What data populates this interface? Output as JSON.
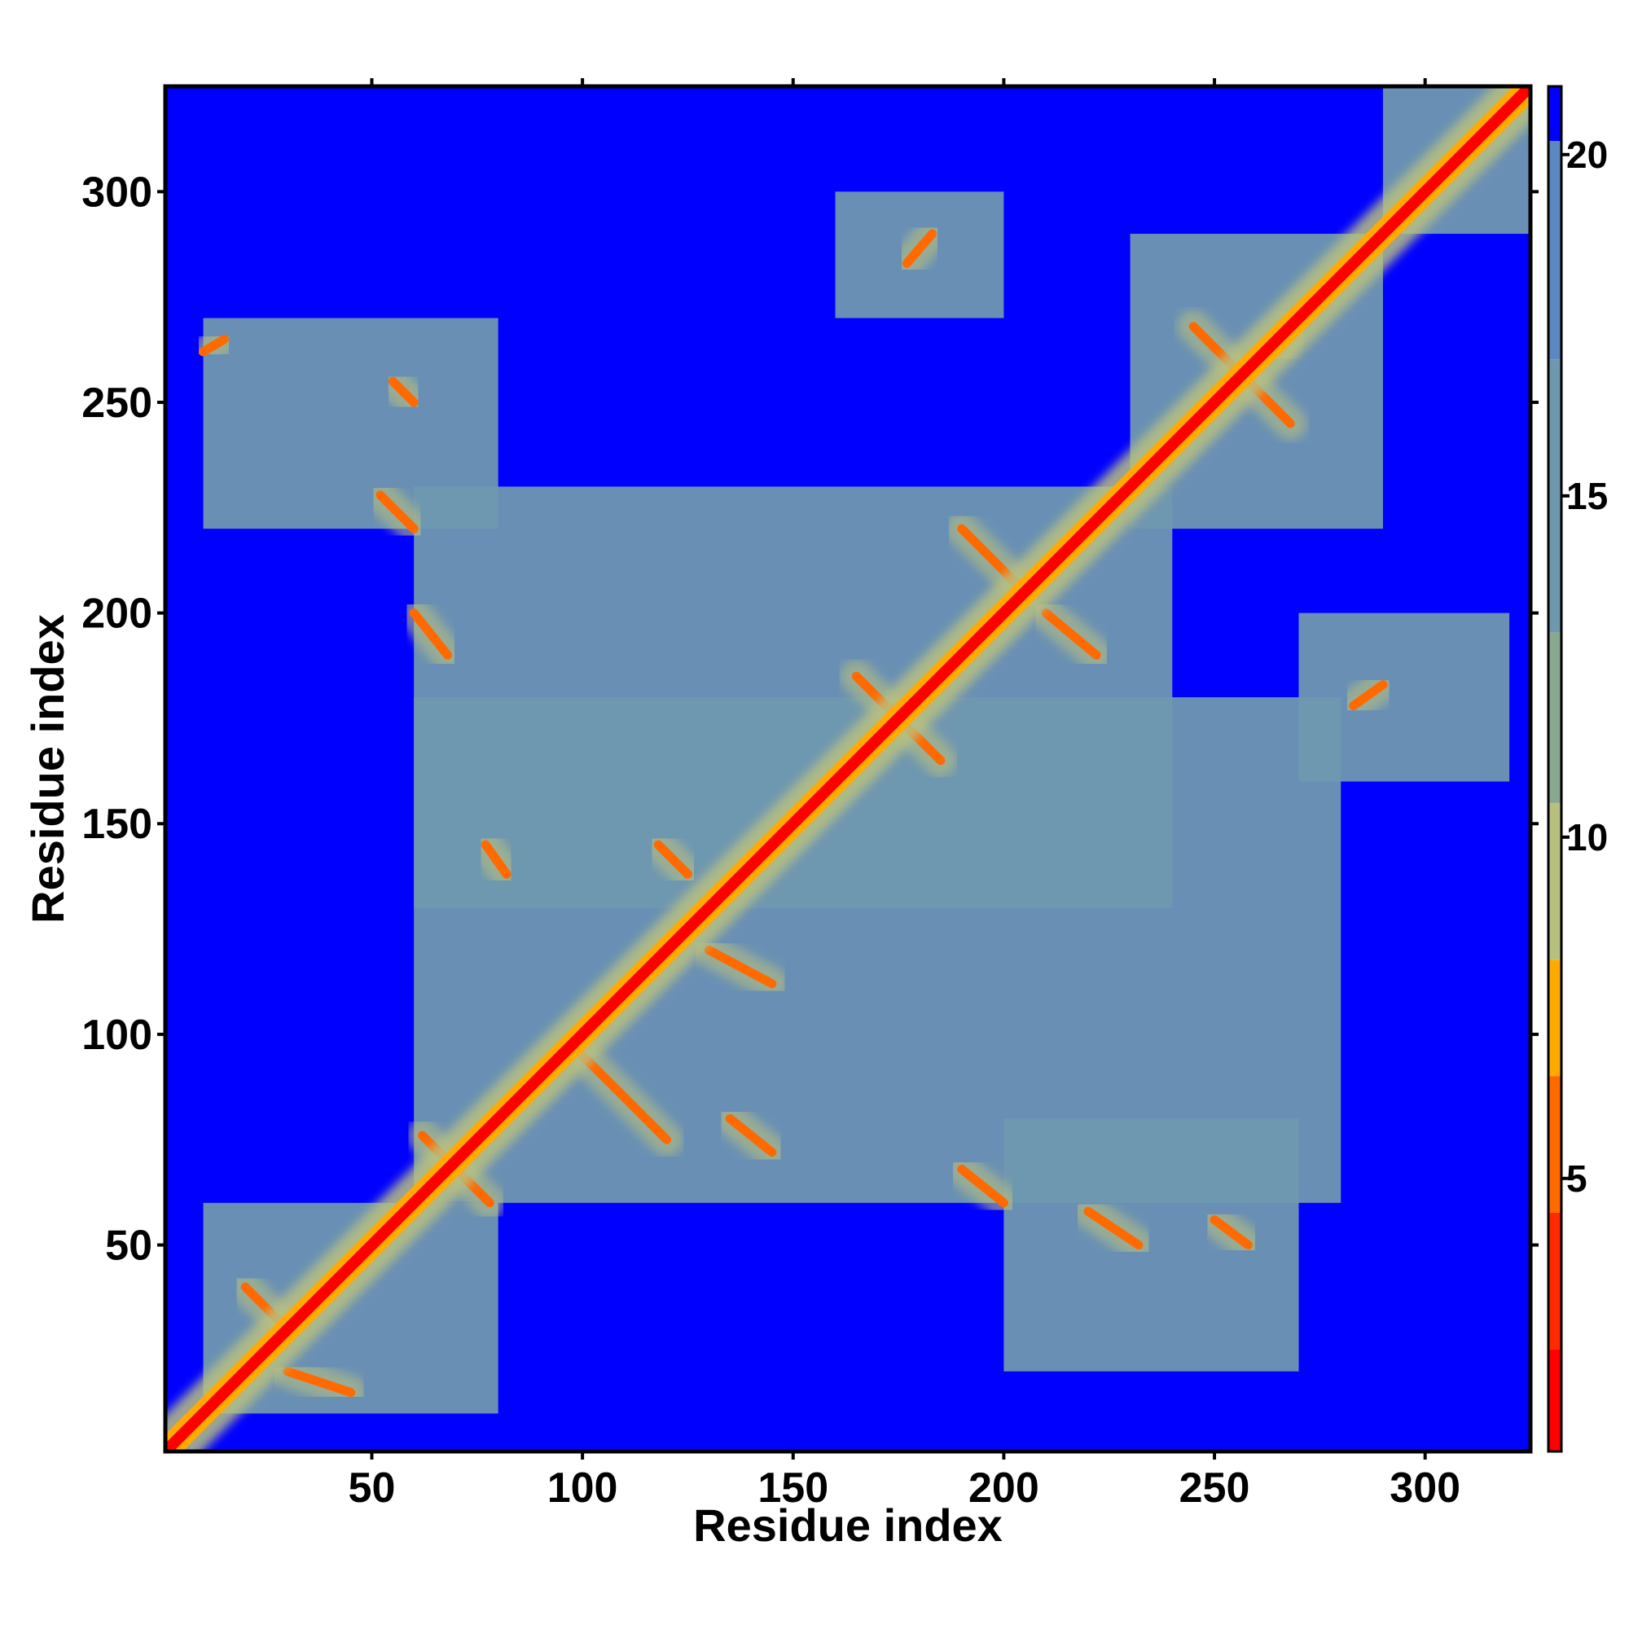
{
  "chart_data": {
    "type": "heatmap",
    "title": "",
    "xlabel": "Residue index",
    "ylabel": "Residue index",
    "n_residues": 325,
    "xlim": [
      1,
      325
    ],
    "ylim": [
      1,
      325
    ],
    "x_ticks": [
      50,
      100,
      150,
      200,
      250,
      300
    ],
    "y_ticks": [
      50,
      100,
      150,
      200,
      250,
      300
    ],
    "x_tick_labels": [
      "50",
      "100",
      "150",
      "200",
      "250",
      "300"
    ],
    "y_tick_labels": [
      "50",
      "100",
      "150",
      "200",
      "250",
      "300"
    ],
    "colorbar": {
      "range": [
        1,
        21
      ],
      "ticks": [
        5,
        10,
        15,
        20
      ],
      "tick_labels": [
        "5",
        "10",
        "15",
        "20"
      ],
      "bands": [
        {
          "from": 1,
          "to": 2.5,
          "color": "#ff0000"
        },
        {
          "from": 2.5,
          "to": 4.5,
          "color": "#ff2a00"
        },
        {
          "from": 4.5,
          "to": 6.5,
          "color": "#ff6a00"
        },
        {
          "from": 6.5,
          "to": 8.2,
          "color": "#ffaa00"
        },
        {
          "from": 8.2,
          "to": 10.5,
          "color": "#b8c080"
        },
        {
          "from": 10.5,
          "to": 13,
          "color": "#8aa890"
        },
        {
          "from": 13,
          "to": 17,
          "color": "#6f98b0"
        },
        {
          "from": 17,
          "to": 20.2,
          "color": "#5a88c0"
        },
        {
          "from": 20.2,
          "to": 21,
          "color": "#0000ff"
        }
      ]
    },
    "background_value": 21,
    "diagonal_value": 1.5,
    "contact_regions": [
      {
        "x": [
          1,
          325
        ],
        "y": [
          1,
          325
        ],
        "value": 21
      },
      {
        "x": [
          60,
          280
        ],
        "y": [
          60,
          180
        ],
        "value": 16
      },
      {
        "x": [
          60,
          240
        ],
        "y": [
          130,
          230
        ],
        "value": 16
      },
      {
        "x": [
          10,
          80
        ],
        "y": [
          10,
          60
        ],
        "value": 16
      },
      {
        "x": [
          200,
          270
        ],
        "y": [
          20,
          80
        ],
        "value": 16
      },
      {
        "x": [
          230,
          290
        ],
        "y": [
          220,
          290
        ],
        "value": 16
      },
      {
        "x": [
          290,
          325
        ],
        "y": [
          290,
          325
        ],
        "value": 16
      },
      {
        "x": [
          10,
          80
        ],
        "y": [
          220,
          270
        ],
        "value": 16
      },
      {
        "x": [
          160,
          200
        ],
        "y": [
          270,
          300
        ],
        "value": 16
      },
      {
        "x": [
          270,
          320
        ],
        "y": [
          160,
          200
        ],
        "value": 16
      }
    ],
    "contact_lines": [
      {
        "from": [
          20,
          40
        ],
        "to": [
          30,
          30
        ],
        "value": 5
      },
      {
        "from": [
          30,
          20
        ],
        "to": [
          45,
          15
        ],
        "value": 5
      },
      {
        "from": [
          62,
          76
        ],
        "to": [
          78,
          60
        ],
        "value": 5
      },
      {
        "from": [
          100,
          95
        ],
        "to": [
          120,
          75
        ],
        "value": 5
      },
      {
        "from": [
          135,
          80
        ],
        "to": [
          145,
          72
        ],
        "value": 5
      },
      {
        "from": [
          118,
          145
        ],
        "to": [
          125,
          138
        ],
        "value": 5
      },
      {
        "from": [
          130,
          120
        ],
        "to": [
          145,
          112
        ],
        "value": 5
      },
      {
        "from": [
          165,
          185
        ],
        "to": [
          185,
          165
        ],
        "value": 5
      },
      {
        "from": [
          190,
          220
        ],
        "to": [
          205,
          205
        ],
        "value": 5
      },
      {
        "from": [
          210,
          200
        ],
        "to": [
          222,
          190
        ],
        "value": 5
      },
      {
        "from": [
          245,
          268
        ],
        "to": [
          268,
          245
        ],
        "value": 5
      },
      {
        "from": [
          60,
          200
        ],
        "to": [
          68,
          190
        ],
        "value": 5
      },
      {
        "from": [
          55,
          255
        ],
        "to": [
          60,
          250
        ],
        "value": 5
      },
      {
        "from": [
          52,
          228
        ],
        "to": [
          60,
          220
        ],
        "value": 5
      },
      {
        "from": [
          77,
          145
        ],
        "to": [
          82,
          138
        ],
        "value": 5
      },
      {
        "from": [
          190,
          68
        ],
        "to": [
          200,
          60
        ],
        "value": 5
      },
      {
        "from": [
          220,
          58
        ],
        "to": [
          232,
          50
        ],
        "value": 5
      },
      {
        "from": [
          250,
          56
        ],
        "to": [
          258,
          50
        ],
        "value": 5
      },
      {
        "from": [
          283,
          178
        ],
        "to": [
          290,
          183
        ],
        "value": 5
      },
      {
        "from": [
          177,
          283
        ],
        "to": [
          183,
          290
        ],
        "value": 5
      },
      {
        "from": [
          10,
          262
        ],
        "to": [
          15,
          265
        ],
        "value": 5
      },
      {
        "from": [
          265,
          262
        ],
        "to": [
          270,
          270
        ],
        "value": 5
      }
    ]
  }
}
